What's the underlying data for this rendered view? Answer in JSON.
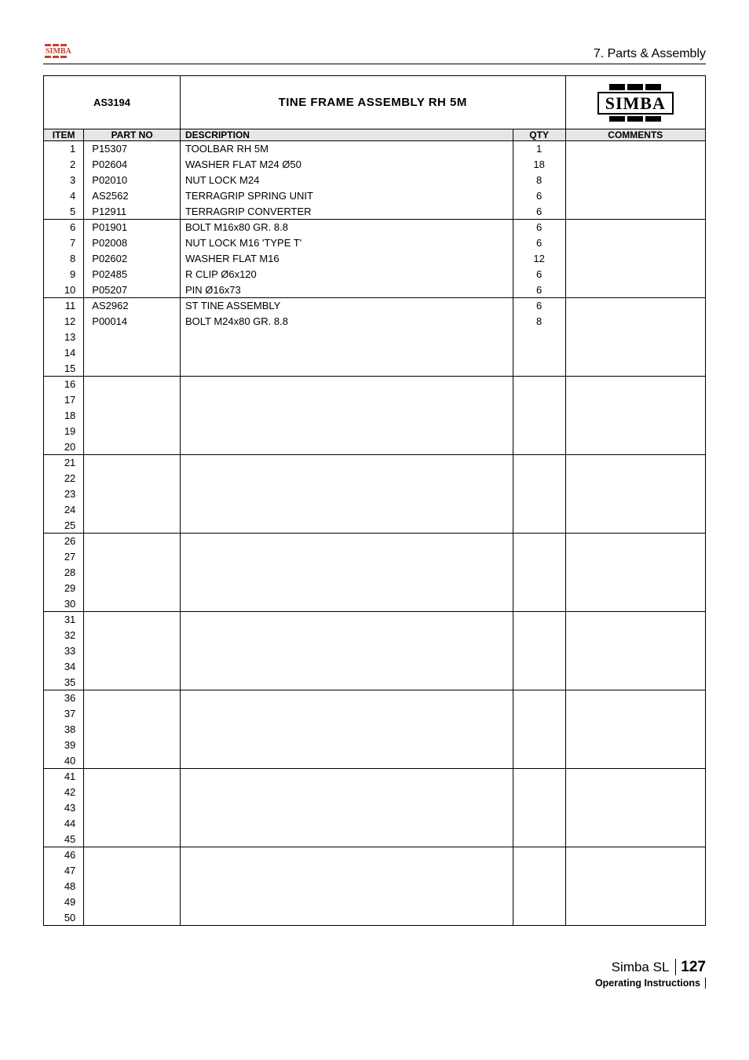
{
  "header": {
    "section": "7. Parts & Assembly",
    "model": "AS3194",
    "title": "TINE FRAME ASSEMBLY RH 5M",
    "brand": "SIMBA"
  },
  "columns": {
    "item": "ITEM",
    "part": "PART NO",
    "desc": "DESCRIPTION",
    "qty": "QTY",
    "comm": "COMMENTS"
  },
  "col_widths": {
    "item": 46,
    "part": 110,
    "desc": 380,
    "qty": 60,
    "comm": 160
  },
  "groups": [
    [
      {
        "n": "1",
        "p": "P15307",
        "d": "TOOLBAR RH 5M",
        "q": "1"
      },
      {
        "n": "2",
        "p": "P02604",
        "d": "WASHER FLAT M24 Ø50",
        "q": "18"
      },
      {
        "n": "3",
        "p": "P02010",
        "d": "NUT LOCK M24",
        "q": "8"
      },
      {
        "n": "4",
        "p": "AS2562",
        "d": "TERRAGRIP SPRING UNIT",
        "q": "6"
      },
      {
        "n": "5",
        "p": "P12911",
        "d": "TERRAGRIP CONVERTER",
        "q": "6"
      }
    ],
    [
      {
        "n": "6",
        "p": "P01901",
        "d": "BOLT M16x80 GR. 8.8",
        "q": "6"
      },
      {
        "n": "7",
        "p": "P02008",
        "d": "NUT LOCK M16 'TYPE T'",
        "q": "6"
      },
      {
        "n": "8",
        "p": "P02602",
        "d": "WASHER FLAT M16",
        "q": "12"
      },
      {
        "n": "9",
        "p": "P02485",
        "d": "R CLIP Ø6x120",
        "q": "6"
      },
      {
        "n": "10",
        "p": "P05207",
        "d": "PIN Ø16x73",
        "q": "6"
      }
    ],
    [
      {
        "n": "11",
        "p": "AS2962",
        "d": "ST TINE ASSEMBLY",
        "q": "6"
      },
      {
        "n": "12",
        "p": "P00014",
        "d": "BOLT M24x80 GR. 8.8",
        "q": "8"
      },
      {
        "n": "13",
        "p": "",
        "d": "",
        "q": ""
      },
      {
        "n": "14",
        "p": "",
        "d": "",
        "q": ""
      },
      {
        "n": "15",
        "p": "",
        "d": "",
        "q": ""
      }
    ],
    [
      {
        "n": "16",
        "p": "",
        "d": "",
        "q": ""
      },
      {
        "n": "17",
        "p": "",
        "d": "",
        "q": ""
      },
      {
        "n": "18",
        "p": "",
        "d": "",
        "q": ""
      },
      {
        "n": "19",
        "p": "",
        "d": "",
        "q": ""
      },
      {
        "n": "20",
        "p": "",
        "d": "",
        "q": ""
      }
    ],
    [
      {
        "n": "21",
        "p": "",
        "d": "",
        "q": ""
      },
      {
        "n": "22",
        "p": "",
        "d": "",
        "q": ""
      },
      {
        "n": "23",
        "p": "",
        "d": "",
        "q": ""
      },
      {
        "n": "24",
        "p": "",
        "d": "",
        "q": ""
      },
      {
        "n": "25",
        "p": "",
        "d": "",
        "q": ""
      }
    ],
    [
      {
        "n": "26",
        "p": "",
        "d": "",
        "q": ""
      },
      {
        "n": "27",
        "p": "",
        "d": "",
        "q": ""
      },
      {
        "n": "28",
        "p": "",
        "d": "",
        "q": ""
      },
      {
        "n": "29",
        "p": "",
        "d": "",
        "q": ""
      },
      {
        "n": "30",
        "p": "",
        "d": "",
        "q": ""
      }
    ],
    [
      {
        "n": "31",
        "p": "",
        "d": "",
        "q": ""
      },
      {
        "n": "32",
        "p": "",
        "d": "",
        "q": ""
      },
      {
        "n": "33",
        "p": "",
        "d": "",
        "q": ""
      },
      {
        "n": "34",
        "p": "",
        "d": "",
        "q": ""
      },
      {
        "n": "35",
        "p": "",
        "d": "",
        "q": ""
      }
    ],
    [
      {
        "n": "36",
        "p": "",
        "d": "",
        "q": ""
      },
      {
        "n": "37",
        "p": "",
        "d": "",
        "q": ""
      },
      {
        "n": "38",
        "p": "",
        "d": "",
        "q": ""
      },
      {
        "n": "39",
        "p": "",
        "d": "",
        "q": ""
      },
      {
        "n": "40",
        "p": "",
        "d": "",
        "q": ""
      }
    ],
    [
      {
        "n": "41",
        "p": "",
        "d": "",
        "q": ""
      },
      {
        "n": "42",
        "p": "",
        "d": "",
        "q": ""
      },
      {
        "n": "43",
        "p": "",
        "d": "",
        "q": ""
      },
      {
        "n": "44",
        "p": "",
        "d": "",
        "q": ""
      },
      {
        "n": "45",
        "p": "",
        "d": "",
        "q": ""
      }
    ],
    [
      {
        "n": "46",
        "p": "",
        "d": "",
        "q": ""
      },
      {
        "n": "47",
        "p": "",
        "d": "",
        "q": ""
      },
      {
        "n": "48",
        "p": "",
        "d": "",
        "q": ""
      },
      {
        "n": "49",
        "p": "",
        "d": "",
        "q": ""
      },
      {
        "n": "50",
        "p": "",
        "d": "",
        "q": ""
      }
    ]
  ],
  "footer": {
    "product": "Simba SL",
    "page": "127",
    "sub": "Operating Instructions"
  },
  "colors": {
    "header_bg": "#e6e6e6",
    "border": "#000000",
    "text": "#000000",
    "logo_red": "#c04030"
  }
}
